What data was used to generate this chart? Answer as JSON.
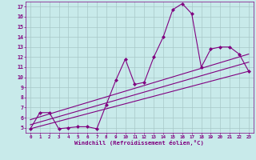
{
  "background_color": "#c8eaea",
  "grid_color": "#a8c8c8",
  "line_color": "#800080",
  "marker_color": "#800080",
  "xlabel": "Windchill (Refroidissement éolien,°C)",
  "xlim": [
    -0.5,
    23.5
  ],
  "ylim": [
    4.5,
    17.5
  ],
  "yticks": [
    5,
    6,
    7,
    8,
    9,
    10,
    11,
    12,
    13,
    14,
    15,
    16,
    17
  ],
  "xticks": [
    0,
    1,
    2,
    3,
    4,
    5,
    6,
    7,
    8,
    9,
    10,
    11,
    12,
    13,
    14,
    15,
    16,
    17,
    18,
    19,
    20,
    21,
    22,
    23
  ],
  "series1_x": [
    0,
    1,
    2,
    3,
    4,
    5,
    6,
    7,
    8,
    9,
    10,
    11,
    12,
    13,
    14,
    15,
    16,
    17,
    18,
    19,
    20,
    21,
    22,
    23
  ],
  "series1_y": [
    4.9,
    6.5,
    6.5,
    4.9,
    5.0,
    5.1,
    5.1,
    4.9,
    7.3,
    9.7,
    11.8,
    9.3,
    9.5,
    12.0,
    14.0,
    16.7,
    17.3,
    16.3,
    11.0,
    12.8,
    13.0,
    13.0,
    12.3,
    10.6
  ],
  "series2_x": [
    0,
    23
  ],
  "series2_y": [
    4.9,
    10.6
  ],
  "series3_x": [
    0,
    23
  ],
  "series3_y": [
    5.8,
    12.3
  ],
  "series4_x": [
    0,
    23
  ],
  "series4_y": [
    5.3,
    11.5
  ]
}
